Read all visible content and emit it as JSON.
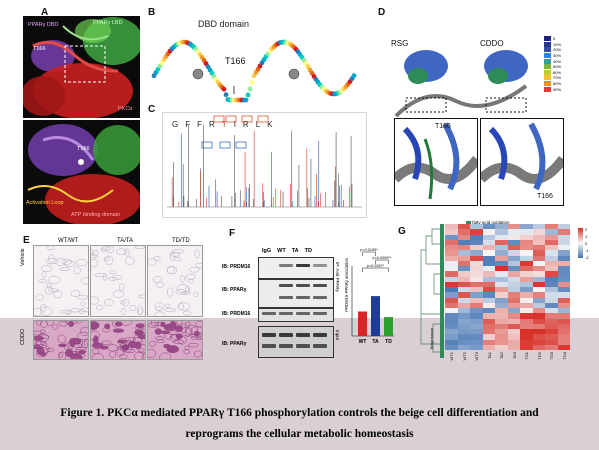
{
  "figure": {
    "caption_line1": "Figure 1. PKCα mediated PPARγ T166 phosphorylation controls the beige cell differentiation and",
    "caption_line2": "reprograms the cellular metabolic homeostasis"
  },
  "panels": {
    "a": {
      "label": "A",
      "top_labels": {
        "ppary_dbd": "PPARγ DBD",
        "ppary_lbd": "PPARγ LBD",
        "t166": "T166",
        "pkca": "PKCα"
      },
      "bottom_labels": {
        "t166": "T166",
        "activation_loop": "Activation Loop",
        "atp_domain": "ATP binding domain"
      }
    },
    "b": {
      "label": "B",
      "title": "DBD domain",
      "site": "T166"
    },
    "c": {
      "label": "C",
      "sequence": [
        "G",
        "F",
        "F",
        "R",
        "T",
        "I",
        "R",
        "L",
        "K"
      ]
    },
    "d": {
      "label": "D",
      "left_title": "RSG",
      "right_title": "CDDO",
      "site_left": "T166",
      "site_right": "T166",
      "legend": [
        "0",
        "10%",
        "20%",
        "30%",
        "40%",
        "50%",
        "60%",
        "70%",
        "80%",
        "90%"
      ]
    },
    "e": {
      "label": "E",
      "columns": [
        "WT/WT",
        "TA/TA",
        "TD/TD"
      ],
      "rows": [
        "Vehicle",
        "CDDO"
      ]
    },
    "f": {
      "label": "F",
      "lanes": [
        "IgG",
        "WT",
        "TA",
        "TD"
      ],
      "blots": [
        "IB: PRDM16",
        "IB: PPARγ",
        "IB: PRDM16",
        "IB: PPARγ"
      ],
      "side_labels": [
        "IP: Anti-PPARγ",
        "Input"
      ],
      "ylabel": "PRDM16-PPARγ association",
      "pvals": [
        "p=0.0195*",
        "p=0.0059**",
        "p=0.0287*"
      ]
    },
    "g": {
      "label": "G",
      "legend_label": "fatty acid oxidation",
      "columns": [
        "WT1",
        "WT2",
        "WT3",
        "TA1",
        "TA2",
        "TA3",
        "TD1",
        "TD2",
        "TD3",
        "TD4"
      ],
      "row_group": "Beige/brown",
      "scale": [
        "2",
        "1",
        "0",
        "-1",
        "-2"
      ]
    }
  },
  "chart_data": {
    "type": "bar",
    "categories": [
      "WT",
      "TA",
      "TD"
    ],
    "series": [
      {
        "values": [
          0.35,
          0.57,
          0.27
        ]
      }
    ],
    "colors": [
      "#d62728",
      "#1f3c99",
      "#2ca02c"
    ],
    "ylabel": "PRDM16-PPARγ association",
    "ylim": [
      0,
      1.0
    ],
    "annotations": [
      "p=0.0195*",
      "p=0.0059**",
      "p=0.0287*"
    ]
  }
}
